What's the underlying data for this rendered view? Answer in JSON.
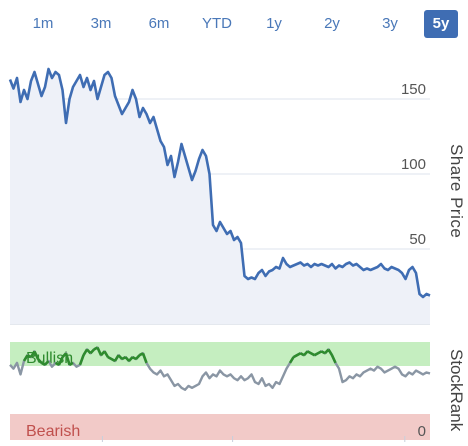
{
  "range_tabs": [
    {
      "label": "1m",
      "active": false
    },
    {
      "label": "3m",
      "active": false
    },
    {
      "label": "6m",
      "active": false
    },
    {
      "label": "YTD",
      "active": false
    },
    {
      "label": "1y",
      "active": false
    },
    {
      "label": "2y",
      "active": false
    },
    {
      "label": "3y",
      "active": false
    },
    {
      "label": "5y",
      "active": true
    }
  ],
  "chart_data": [
    {
      "type": "line",
      "ylabel": "Share Price",
      "ylim": [
        0,
        180
      ],
      "yticks": [
        0,
        50,
        100,
        150
      ],
      "grid": true,
      "series": [
        {
          "color": "#3f6db3",
          "x": [
            0,
            0.5,
            1,
            1.5,
            2,
            2.5,
            3,
            3.5,
            4,
            4.5,
            5,
            5.5,
            6,
            6.5,
            7,
            7.5,
            8,
            8.5,
            9,
            9.5,
            10,
            10.5,
            11,
            11.5,
            12,
            12.5,
            13,
            13.5,
            14,
            14.5,
            15,
            15.5,
            16,
            16.5,
            17,
            17.5,
            18,
            18.5,
            19,
            19.5,
            20,
            20.5,
            21,
            21.5,
            22,
            22.5,
            23,
            23.5,
            24,
            24.5,
            25,
            25.5,
            26,
            26.5,
            27,
            27.5,
            28,
            28.5,
            29,
            29.5,
            30,
            30.5,
            31,
            31.5,
            32,
            32.5,
            33,
            33.5,
            34,
            34.5,
            35,
            35.5,
            36,
            36.5,
            37,
            37.5,
            38,
            38.5,
            39,
            39.5,
            40,
            40.5,
            41,
            41.5,
            42,
            42.5,
            43,
            43.5,
            44,
            44.5,
            45,
            45.5,
            46,
            46.5,
            47,
            47.5,
            48,
            48.5,
            49,
            49.5,
            50,
            50.5,
            51,
            51.5,
            52,
            52.5,
            53,
            53.5,
            54,
            54.5,
            55,
            55.5,
            56,
            56.5,
            57,
            57.5,
            58,
            58.5,
            59,
            59.5,
            60
          ],
          "values": [
            163,
            157,
            164,
            148,
            156,
            150,
            162,
            168,
            160,
            152,
            158,
            170,
            164,
            168,
            166,
            156,
            134,
            150,
            158,
            162,
            166,
            158,
            164,
            156,
            162,
            150,
            158,
            166,
            168,
            164,
            152,
            146,
            140,
            144,
            148,
            156,
            150,
            138,
            144,
            140,
            134,
            138,
            130,
            122,
            118,
            106,
            112,
            98,
            108,
            120,
            112,
            104,
            96,
            102,
            110,
            116,
            112,
            100,
            66,
            62,
            68,
            64,
            60,
            62,
            56,
            58,
            54,
            32,
            30,
            31,
            30,
            34,
            36,
            32,
            35,
            36,
            38,
            37,
            44,
            40,
            38,
            39,
            40,
            41,
            39,
            40,
            38,
            40,
            39,
            40,
            39,
            38,
            40,
            37,
            39,
            38,
            40,
            41,
            39,
            40,
            38,
            36,
            37,
            36,
            37,
            38,
            40,
            37,
            36,
            38,
            37,
            36,
            34,
            30,
            36,
            38,
            34,
            20,
            18,
            20,
            19
          ]
        }
      ]
    },
    {
      "type": "line",
      "ylabel": "StockRank",
      "ylim": [
        0,
        100
      ],
      "yticks": [
        0
      ],
      "bands": [
        {
          "label": "Bullish",
          "from": 70,
          "to": 100,
          "color": "#c5eec0",
          "text_color": "#2e8b2e"
        },
        {
          "label": "Bearish",
          "from": 0,
          "to": 30,
          "color": "#f2cac8",
          "text_color": "#c0504d"
        }
      ],
      "bullish_threshold": 70,
      "series": [
        {
          "color": "#8a96a4",
          "highlight_color": "#2e8b2e",
          "x": [
            0,
            0.5,
            1,
            1.5,
            2,
            2.5,
            3,
            3.5,
            4,
            4.5,
            5,
            5.5,
            6,
            6.5,
            7,
            7.5,
            8,
            8.5,
            9,
            9.5,
            10,
            10.5,
            11,
            11.5,
            12,
            12.5,
            13,
            13.5,
            14,
            14.5,
            15,
            15.5,
            16,
            16.5,
            17,
            17.5,
            18,
            18.5,
            19,
            19.5,
            20,
            20.5,
            21,
            21.5,
            22,
            22.5,
            23,
            23.5,
            24,
            24.5,
            25,
            25.5,
            26,
            26.5,
            27,
            27.5,
            28,
            28.5,
            29,
            29.5,
            30,
            30.5,
            31,
            31.5,
            32,
            32.5,
            33,
            33.5,
            34,
            34.5,
            35,
            35.5,
            36,
            36.5,
            37,
            37.5,
            38,
            38.5,
            39,
            39.5,
            40,
            40.5,
            41,
            41.5,
            42,
            42.5,
            43,
            43.5,
            44,
            44.5,
            45,
            45.5,
            46,
            46.5,
            47,
            47.5,
            48,
            48.5,
            49,
            49.5,
            50,
            50.5,
            51,
            51.5,
            52,
            52.5,
            53,
            53.5,
            54,
            54.5,
            55,
            55.5,
            56,
            56.5,
            57,
            57.5,
            58,
            58.5,
            59,
            59.5,
            60
          ],
          "values": [
            70,
            66,
            72,
            60,
            74,
            80,
            78,
            84,
            76,
            72,
            70,
            74,
            68,
            72,
            70,
            78,
            82,
            70,
            72,
            68,
            70,
            80,
            86,
            82,
            86,
            88,
            80,
            84,
            78,
            76,
            74,
            80,
            76,
            78,
            74,
            78,
            76,
            80,
            82,
            72,
            66,
            62,
            60,
            64,
            58,
            60,
            54,
            48,
            50,
            46,
            44,
            48,
            46,
            48,
            50,
            58,
            62,
            56,
            60,
            58,
            64,
            60,
            58,
            60,
            56,
            54,
            58,
            54,
            56,
            60,
            52,
            50,
            56,
            48,
            50,
            46,
            52,
            50,
            58,
            66,
            72,
            78,
            80,
            82,
            80,
            84,
            82,
            80,
            82,
            84,
            82,
            86,
            80,
            72,
            66,
            52,
            54,
            58,
            56,
            60,
            58,
            62,
            64,
            66,
            64,
            68,
            66,
            62,
            64,
            66,
            68,
            66,
            60,
            58,
            62,
            60,
            64,
            62,
            60,
            62,
            61
          ]
        }
      ]
    }
  ]
}
